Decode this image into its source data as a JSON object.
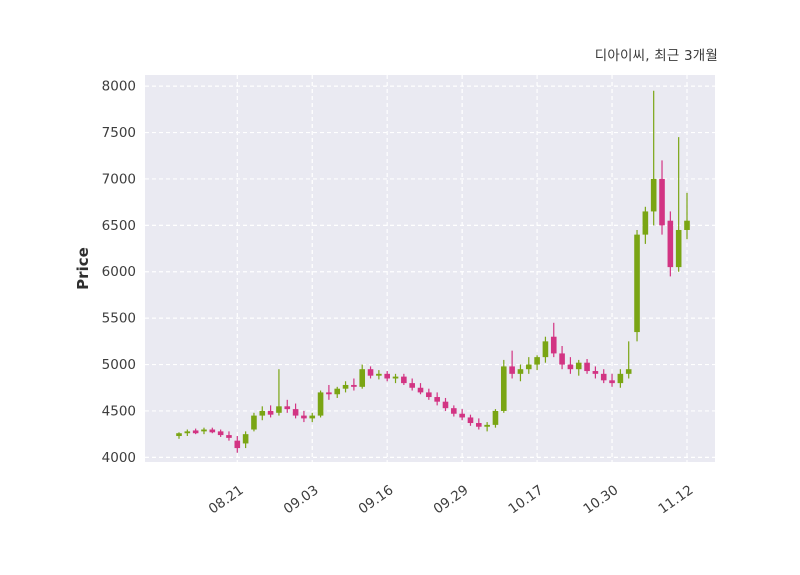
{
  "title": "디아이씨, 최근 3개월",
  "chart_data": {
    "type": "candlestick",
    "title": "디아이씨, 최근 3개월",
    "xlabel": "",
    "ylabel": "Price",
    "ylim": [
      3950,
      8120
    ],
    "yticks": [
      4000,
      4500,
      5000,
      5500,
      6000,
      6500,
      7000,
      7500,
      8000
    ],
    "grid": "dashed-white-major",
    "legend": "none",
    "background": "#eaeaf2",
    "up_color": "#7aa514",
    "down_color": "#d23483",
    "tick_color": "#3d3d3d",
    "xticks": [
      {
        "index": 7,
        "label": "08.21"
      },
      {
        "index": 16,
        "label": "09.03"
      },
      {
        "index": 25,
        "label": "09.16"
      },
      {
        "index": 34,
        "label": "09.29"
      },
      {
        "index": 43,
        "label": "10.17"
      },
      {
        "index": 52,
        "label": "10.30"
      },
      {
        "index": 61,
        "label": "11.12"
      }
    ],
    "ohlc_columns": [
      "open",
      "high",
      "low",
      "close"
    ],
    "candles": [
      [
        4230,
        4270,
        4200,
        4260
      ],
      [
        4260,
        4300,
        4230,
        4280
      ],
      [
        4290,
        4310,
        4250,
        4260
      ],
      [
        4280,
        4320,
        4250,
        4300
      ],
      [
        4300,
        4320,
        4260,
        4270
      ],
      [
        4280,
        4300,
        4220,
        4240
      ],
      [
        4240,
        4280,
        4180,
        4210
      ],
      [
        4180,
        4230,
        4050,
        4100
      ],
      [
        4150,
        4280,
        4100,
        4250
      ],
      [
        4300,
        4480,
        4280,
        4450
      ],
      [
        4450,
        4550,
        4400,
        4500
      ],
      [
        4500,
        4560,
        4430,
        4460
      ],
      [
        4480,
        4950,
        4450,
        4550
      ],
      [
        4550,
        4620,
        4480,
        4520
      ],
      [
        4520,
        4580,
        4420,
        4450
      ],
      [
        4450,
        4500,
        4380,
        4420
      ],
      [
        4420,
        4480,
        4380,
        4450
      ],
      [
        4450,
        4720,
        4430,
        4700
      ],
      [
        4700,
        4780,
        4620,
        4680
      ],
      [
        4680,
        4760,
        4640,
        4740
      ],
      [
        4740,
        4820,
        4700,
        4780
      ],
      [
        4780,
        4850,
        4720,
        4760
      ],
      [
        4760,
        5000,
        4740,
        4950
      ],
      [
        4950,
        4980,
        4850,
        4880
      ],
      [
        4880,
        4940,
        4840,
        4900
      ],
      [
        4900,
        4930,
        4820,
        4850
      ],
      [
        4850,
        4900,
        4800,
        4870
      ],
      [
        4870,
        4900,
        4780,
        4800
      ],
      [
        4800,
        4850,
        4720,
        4750
      ],
      [
        4750,
        4800,
        4680,
        4700
      ],
      [
        4700,
        4740,
        4620,
        4650
      ],
      [
        4650,
        4700,
        4560,
        4600
      ],
      [
        4600,
        4640,
        4500,
        4530
      ],
      [
        4530,
        4560,
        4440,
        4470
      ],
      [
        4470,
        4520,
        4400,
        4430
      ],
      [
        4430,
        4460,
        4340,
        4370
      ],
      [
        4370,
        4420,
        4300,
        4330
      ],
      [
        4330,
        4380,
        4280,
        4350
      ],
      [
        4350,
        4520,
        4320,
        4500
      ],
      [
        4500,
        5050,
        4480,
        4980
      ],
      [
        4980,
        5150,
        4850,
        4900
      ],
      [
        4900,
        5000,
        4820,
        4950
      ],
      [
        4950,
        5080,
        4900,
        5000
      ],
      [
        5000,
        5100,
        4940,
        5080
      ],
      [
        5080,
        5300,
        5020,
        5250
      ],
      [
        5300,
        5450,
        5080,
        5120
      ],
      [
        5120,
        5200,
        4950,
        5000
      ],
      [
        5000,
        5080,
        4900,
        4950
      ],
      [
        4950,
        5050,
        4880,
        5020
      ],
      [
        5020,
        5060,
        4900,
        4930
      ],
      [
        4930,
        4980,
        4850,
        4900
      ],
      [
        4900,
        4950,
        4800,
        4830
      ],
      [
        4830,
        4900,
        4760,
        4800
      ],
      [
        4800,
        4950,
        4750,
        4900
      ],
      [
        4900,
        5250,
        4850,
        4950
      ],
      [
        5350,
        6450,
        5250,
        6400
      ],
      [
        6400,
        6700,
        6300,
        6650
      ],
      [
        6650,
        7950,
        6500,
        7000
      ],
      [
        7000,
        7200,
        6400,
        6500
      ],
      [
        6550,
        6650,
        5950,
        6050
      ],
      [
        6050,
        7450,
        6000,
        6450
      ],
      [
        6450,
        6850,
        6350,
        6550
      ]
    ]
  }
}
